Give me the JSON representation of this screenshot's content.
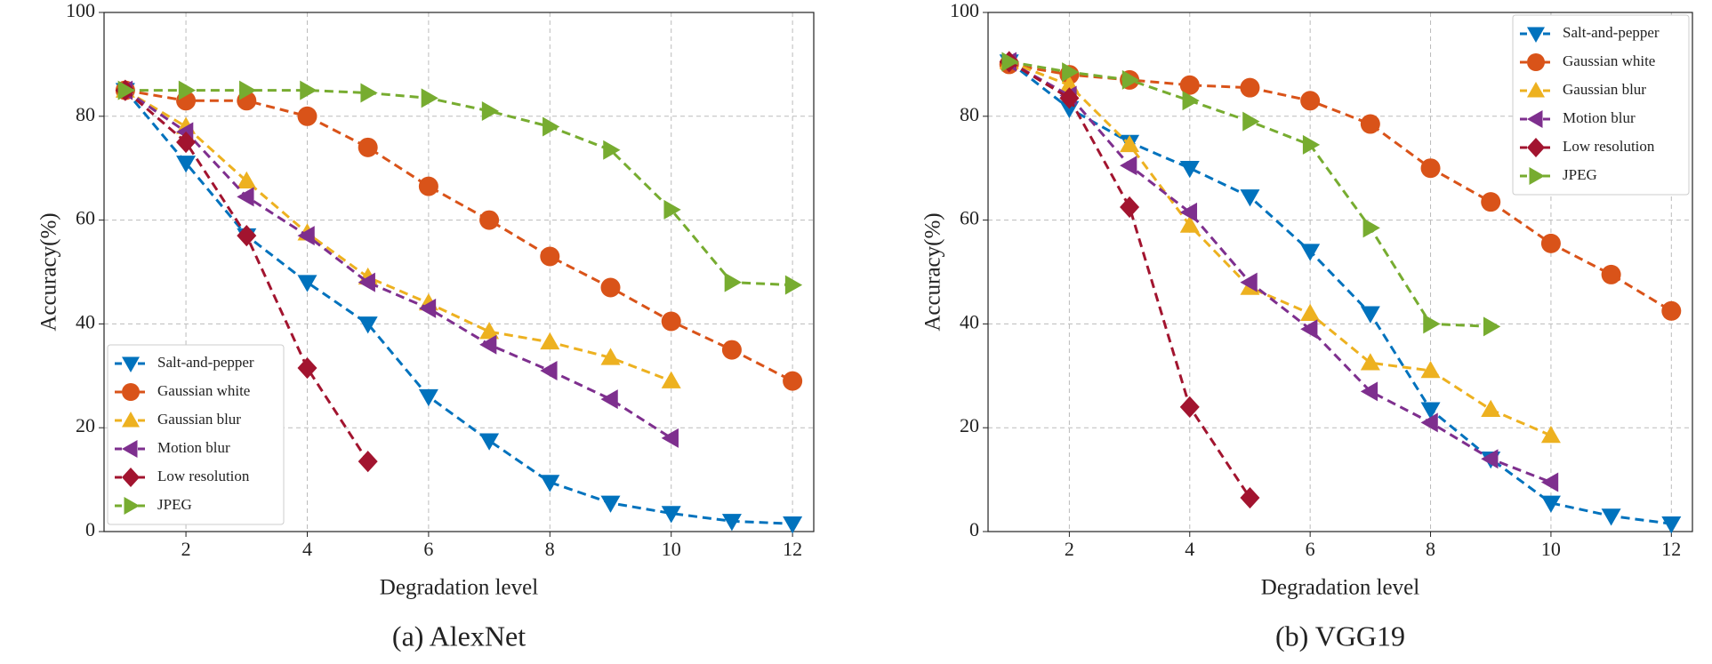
{
  "chart_data": [
    {
      "type": "line",
      "caption": "(a)  AlexNet",
      "x_label": "Degradation level",
      "y_label": "Accuracy(%)",
      "xlim": [
        0.65,
        12.35
      ],
      "ylim": [
        0,
        100
      ],
      "xticks": [
        2,
        4,
        6,
        8,
        10,
        12
      ],
      "yticks": [
        0,
        20,
        40,
        60,
        80,
        100
      ],
      "grid": true,
      "legend": "lower left",
      "series": [
        {
          "name": "Salt-and-pepper",
          "color": "#0072BD",
          "marker": "triangle-down",
          "x": [
            1,
            2,
            3,
            4,
            5,
            6,
            7,
            8,
            9,
            10,
            11,
            12
          ],
          "values": [
            85,
            71,
            57,
            48,
            40,
            26,
            17.5,
            9.5,
            5.5,
            3.5,
            2,
            1.5
          ]
        },
        {
          "name": "Gaussian white",
          "color": "#D95319",
          "marker": "circle",
          "x": [
            1,
            2,
            3,
            4,
            5,
            6,
            7,
            8,
            9,
            10,
            11,
            12
          ],
          "values": [
            85,
            83,
            83,
            80,
            74,
            66.5,
            60,
            53,
            47,
            40.5,
            35,
            29
          ]
        },
        {
          "name": "Gaussian blur",
          "color": "#EDB120",
          "marker": "triangle-up",
          "x": [
            1,
            2,
            3,
            4,
            5,
            6,
            7,
            8,
            9,
            10
          ],
          "values": [
            85,
            78,
            67.5,
            57.5,
            49,
            44,
            38.5,
            36.5,
            33.5,
            29
          ]
        },
        {
          "name": "Motion blur",
          "color": "#7E2F8E",
          "marker": "triangle-left",
          "x": [
            1,
            2,
            3,
            4,
            5,
            6,
            7,
            8,
            9,
            10
          ],
          "values": [
            85,
            77,
            64.5,
            57,
            48,
            43,
            36,
            31,
            25.5,
            18
          ]
        },
        {
          "name": "Low resolution",
          "color": "#A2142F",
          "marker": "diamond",
          "x": [
            1,
            2,
            3,
            4,
            5
          ],
          "values": [
            85,
            75,
            57,
            31.5,
            13.5
          ]
        },
        {
          "name": "JPEG",
          "color": "#77AC30",
          "marker": "triangle-right",
          "x": [
            1,
            2,
            3,
            4,
            5,
            6,
            7,
            8,
            9,
            10,
            11,
            12
          ],
          "values": [
            85,
            85,
            85,
            85,
            84.5,
            83.5,
            81,
            78,
            73.5,
            62,
            48,
            47.5
          ]
        }
      ]
    },
    {
      "type": "line",
      "caption": "(b)  VGG19",
      "x_label": "Degradation level",
      "y_label": "Accuracy(%)",
      "xlim": [
        0.65,
        12.35
      ],
      "ylim": [
        0,
        100
      ],
      "xticks": [
        2,
        4,
        6,
        8,
        10,
        12
      ],
      "yticks": [
        0,
        20,
        40,
        60,
        80,
        100
      ],
      "grid": true,
      "legend": "upper right",
      "series": [
        {
          "name": "Salt-and-pepper",
          "color": "#0072BD",
          "marker": "triangle-down",
          "x": [
            1,
            2,
            3,
            4,
            5,
            6,
            7,
            8,
            9,
            10,
            11,
            12
          ],
          "values": [
            90.5,
            81.5,
            75,
            70,
            64.5,
            54,
            42,
            23.5,
            14,
            5.5,
            3,
            1.5
          ]
        },
        {
          "name": "Gaussian white",
          "color": "#D95319",
          "marker": "circle",
          "x": [
            1,
            2,
            3,
            4,
            5,
            6,
            7,
            8,
            9,
            10,
            11,
            12
          ],
          "values": [
            90,
            88,
            87,
            86,
            85.5,
            83,
            78.5,
            70,
            63.5,
            55.5,
            49.5,
            42.5
          ]
        },
        {
          "name": "Gaussian blur",
          "color": "#EDB120",
          "marker": "triangle-up",
          "x": [
            1,
            2,
            3,
            4,
            5,
            6,
            7,
            8,
            9,
            10
          ],
          "values": [
            90.5,
            86,
            74.5,
            59,
            47,
            42,
            32.5,
            31,
            23.5,
            18.5
          ]
        },
        {
          "name": "Motion blur",
          "color": "#7E2F8E",
          "marker": "triangle-left",
          "x": [
            1,
            2,
            3,
            4,
            5,
            6,
            7,
            8,
            9,
            10
          ],
          "values": [
            90.5,
            84,
            70.5,
            61.5,
            48,
            39,
            27,
            21,
            14,
            9.5
          ]
        },
        {
          "name": "Low resolution",
          "color": "#A2142F",
          "marker": "diamond",
          "x": [
            1,
            2,
            3,
            4,
            5
          ],
          "values": [
            90.5,
            83.5,
            62.5,
            24,
            6.5
          ]
        },
        {
          "name": "JPEG",
          "color": "#77AC30",
          "marker": "triangle-right",
          "x": [
            1,
            2,
            3,
            4,
            5,
            6,
            7,
            8,
            9
          ],
          "values": [
            90.5,
            88.5,
            87,
            83,
            79,
            74.5,
            58.5,
            40,
            39.5
          ]
        }
      ]
    }
  ]
}
